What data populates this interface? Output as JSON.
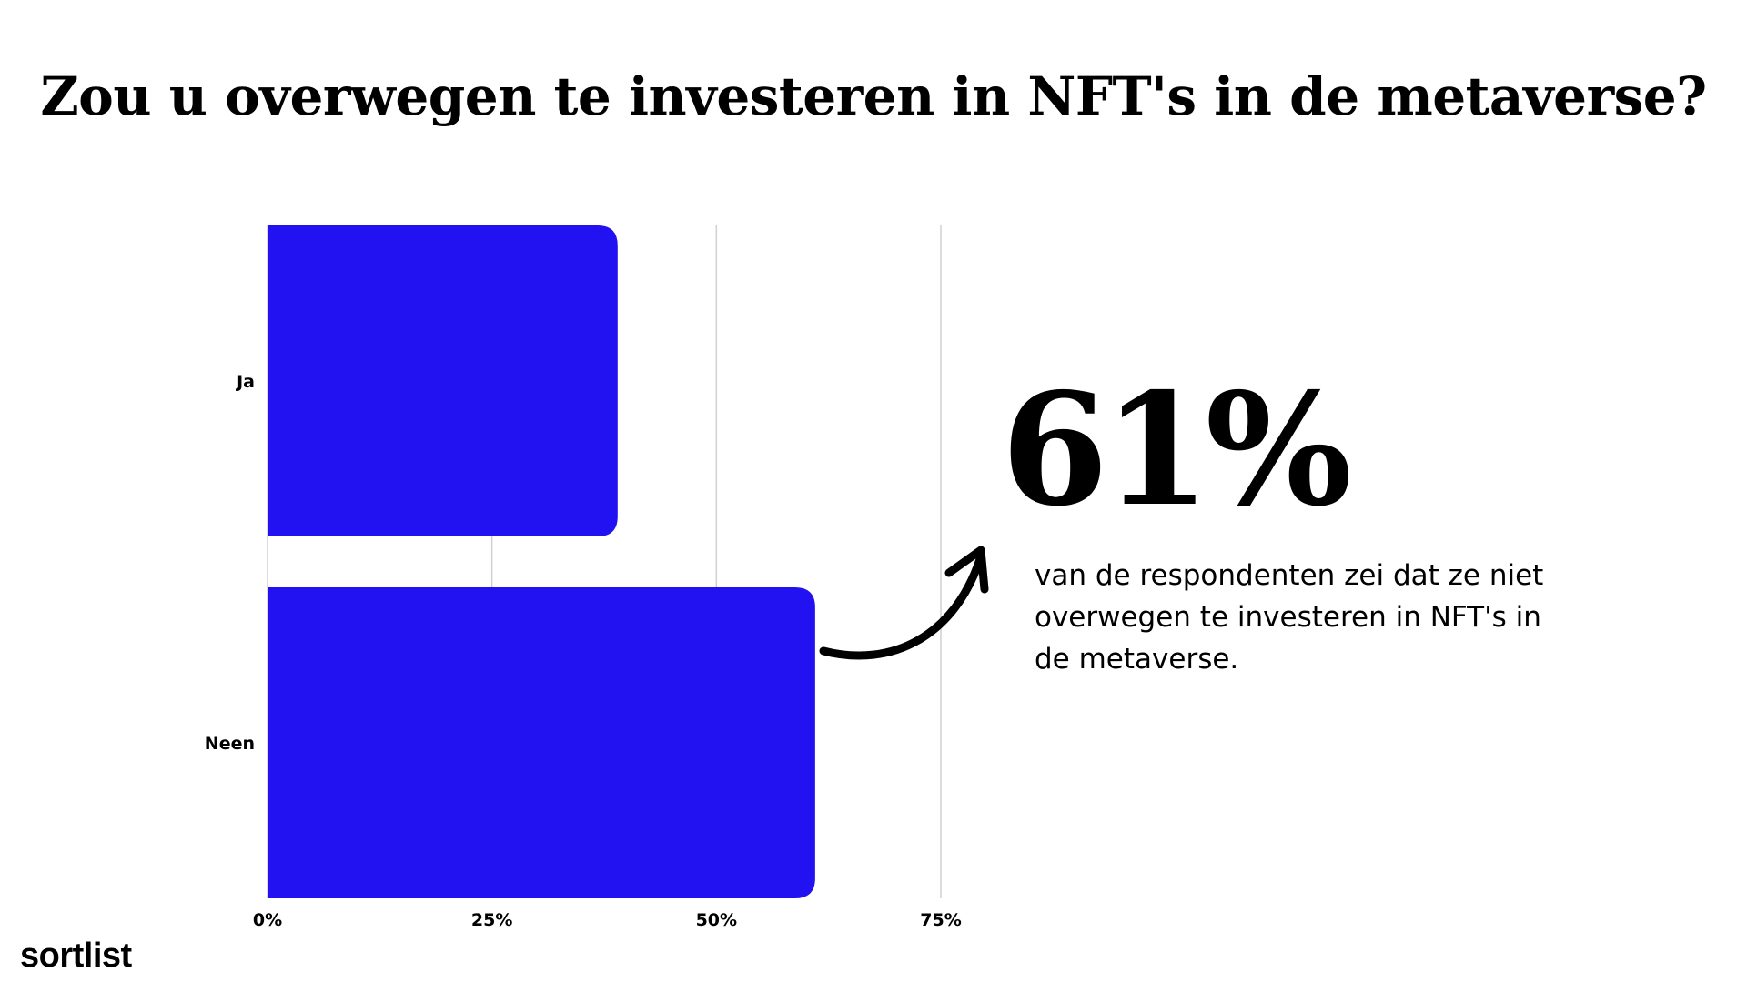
{
  "title": "Zou u overwegen te investeren in NFT's in de metaverse?",
  "highlight": {
    "value": "61%",
    "description": "van de respondenten zei dat ze niet overwegen te investeren in NFT's in de metaverse."
  },
  "logo": "sortlist",
  "colors": {
    "bar": "#2211F1",
    "grid": "#d0d0d0",
    "text": "#000000"
  },
  "chart_data": {
    "type": "bar",
    "orientation": "horizontal",
    "categories": [
      "Ja",
      "Neen"
    ],
    "values": [
      39,
      61
    ],
    "unit": "%",
    "xlim": [
      0,
      75
    ],
    "xticks": [
      0,
      25,
      50,
      75
    ],
    "xtick_labels": [
      "0%",
      "25%",
      "50%",
      "75%"
    ],
    "grid": true
  }
}
